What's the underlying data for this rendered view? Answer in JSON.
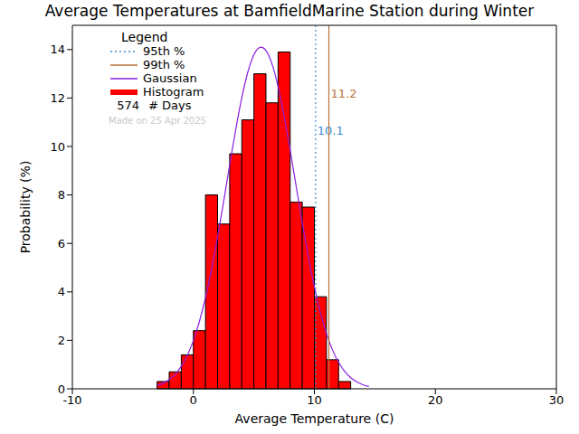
{
  "chart_data": {
    "type": "histogram",
    "title": "Average Temperatures at BamfieldMarine Station during Winter",
    "x_label": "Average Temperature (C)",
    "y_label": "Probability (%)",
    "histogram_name": "Histogram",
    "bins": [
      -3,
      -2,
      -1,
      0,
      1,
      2,
      3,
      4,
      5,
      6,
      7,
      8,
      9,
      10,
      11,
      12,
      13
    ],
    "values": [
      0.3,
      0.7,
      1.4,
      2.4,
      8.0,
      6.8,
      9.7,
      11.1,
      13.0,
      11.8,
      13.9,
      7.7,
      7.5,
      3.8,
      1.2,
      0.3
    ],
    "color": "#ff0000",
    "xlim": [
      -10,
      30
    ],
    "xticks": [
      -10,
      0,
      10,
      20,
      30
    ],
    "ylim": [
      0,
      15
    ],
    "yticks": [
      0,
      2,
      4,
      6,
      8,
      10,
      12,
      14
    ],
    "legend": "upper left",
    "legend_title": "Legend",
    "series": [
      {
        "name": "Gaussian",
        "type": "line",
        "color": "#8a1ee0",
        "x": [
          -3,
          -2.5,
          -2,
          -1.5,
          -1,
          -0.5,
          0,
          0.5,
          1,
          1.5,
          2,
          2.5,
          3,
          3.5,
          4,
          4.5,
          5,
          5.6,
          6,
          6.5,
          7,
          7.5,
          8,
          8.5,
          9,
          9.5,
          10,
          10.5,
          11,
          11.5,
          12,
          12.5,
          13,
          13.5,
          14,
          14.5
        ],
        "values": [
          0.14,
          0.23,
          0.38,
          0.6,
          0.93,
          1.38,
          1.99,
          2.78,
          3.76,
          4.93,
          6.27,
          7.73,
          9.24,
          10.7,
          12.01,
          13.07,
          13.79,
          14.1,
          13.96,
          13.4,
          12.47,
          11.25,
          9.84,
          8.34,
          6.85,
          5.45,
          4.2,
          3.14,
          2.28,
          1.6,
          1.09,
          0.72,
          0.46,
          0.29,
          0.17,
          0.1
        ]
      }
    ],
    "reference_lines": [
      {
        "name": "95th %",
        "value": 10.1,
        "color": "#3a8fd8",
        "line_style": "dotted"
      },
      {
        "name": "99th %",
        "value": 11.2,
        "color": "#b8733b",
        "line_style": "solid"
      }
    ],
    "days": 574,
    "days_label": "# Days",
    "note": "Made on 25 Apr 2025"
  }
}
